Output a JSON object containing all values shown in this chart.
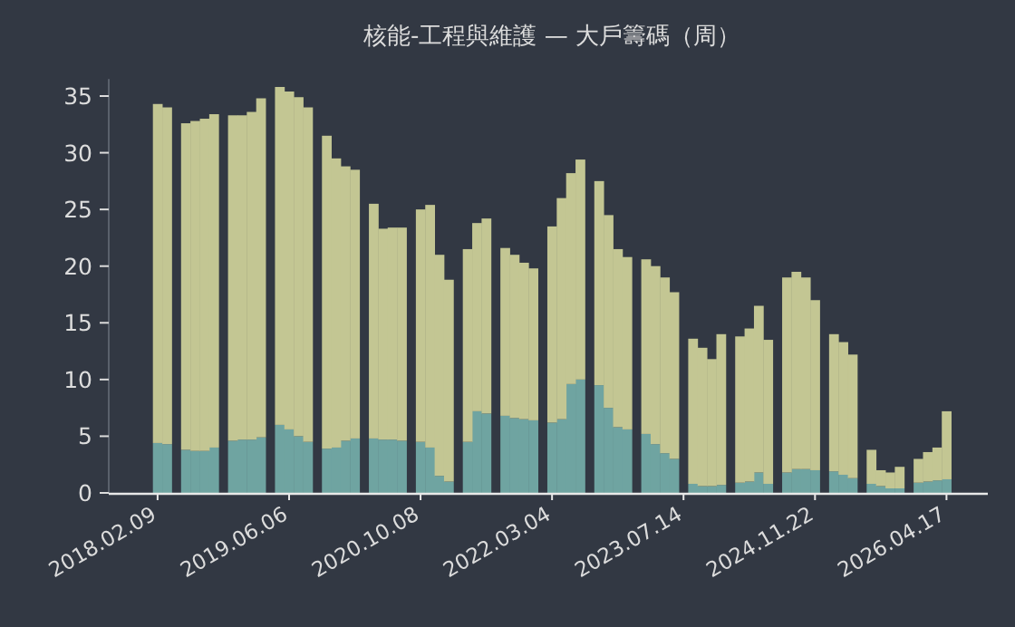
{
  "chart_data": {
    "type": "bar",
    "title": "核能-工程與維護 — 大戶籌碼（周）",
    "stacked": true,
    "categories": [
      "2018.02.09",
      null,
      null,
      null,
      null,
      null,
      null,
      null,
      null,
      null,
      null,
      null,
      null,
      null,
      "2019.06.06",
      null,
      null,
      null,
      null,
      null,
      null,
      null,
      null,
      null,
      null,
      null,
      null,
      null,
      "2020.10.08",
      null,
      null,
      null,
      null,
      null,
      null,
      null,
      null,
      null,
      null,
      null,
      null,
      null,
      "2022.03.04",
      null,
      null,
      null,
      null,
      null,
      null,
      null,
      null,
      null,
      null,
      null,
      null,
      null,
      "2023.07.14",
      null,
      null,
      null,
      null,
      null,
      null,
      null,
      null,
      null,
      null,
      null,
      null,
      null,
      "2024.11.22",
      null,
      null,
      null,
      null,
      null,
      null,
      null,
      null,
      null,
      null,
      null,
      null,
      null,
      "2026.04.17"
    ],
    "series": [
      {
        "color": "#6fa4a1",
        "values": [
          4.4,
          4.3,
          null,
          3.8,
          3.7,
          3.7,
          4.0,
          null,
          4.6,
          4.7,
          4.7,
          4.9,
          null,
          6.0,
          5.6,
          5.0,
          4.5,
          null,
          3.9,
          4.0,
          4.6,
          4.8,
          null,
          4.8,
          4.7,
          4.7,
          4.6,
          null,
          4.5,
          4.0,
          1.5,
          1.0,
          null,
          4.5,
          7.2,
          7.0,
          null,
          6.8,
          6.6,
          6.5,
          6.4,
          null,
          6.2,
          6.5,
          9.6,
          10.0,
          null,
          9.5,
          7.5,
          5.8,
          5.6,
          null,
          5.2,
          4.3,
          3.5,
          3.0,
          null,
          0.8,
          0.6,
          0.6,
          0.7,
          null,
          0.9,
          1.0,
          1.8,
          0.8,
          null,
          1.8,
          2.1,
          2.1,
          2.0,
          null,
          1.9,
          1.6,
          1.3,
          null,
          0.8,
          0.6,
          0.4,
          0.4,
          null,
          0.9,
          1.0,
          1.1,
          1.2
        ]
      },
      {
        "color": "#c3c693",
        "values": [
          29.9,
          29.7,
          null,
          28.8,
          29.1,
          29.3,
          29.4,
          null,
          28.7,
          28.6,
          28.9,
          29.9,
          null,
          29.8,
          29.8,
          29.9,
          29.5,
          null,
          27.6,
          25.5,
          24.2,
          23.7,
          null,
          20.7,
          18.6,
          18.7,
          18.8,
          null,
          20.5,
          21.4,
          19.5,
          17.8,
          null,
          17.0,
          16.6,
          17.2,
          null,
          14.8,
          14.4,
          13.8,
          13.4,
          null,
          17.3,
          19.5,
          18.6,
          19.4,
          null,
          18.0,
          17.0,
          15.7,
          15.2,
          null,
          15.4,
          15.7,
          15.5,
          14.7,
          null,
          12.8,
          12.2,
          11.2,
          13.3,
          null,
          12.9,
          13.5,
          14.7,
          12.7,
          null,
          17.2,
          17.4,
          16.9,
          15.0,
          null,
          12.1,
          11.7,
          10.9,
          null,
          3.0,
          1.4,
          1.4,
          1.9,
          null,
          2.1,
          2.6,
          2.9,
          6.0
        ]
      }
    ],
    "ylim": [
      0,
      36.5
    ],
    "yticks": [
      0,
      5,
      10,
      15,
      20,
      25,
      30,
      35
    ]
  }
}
